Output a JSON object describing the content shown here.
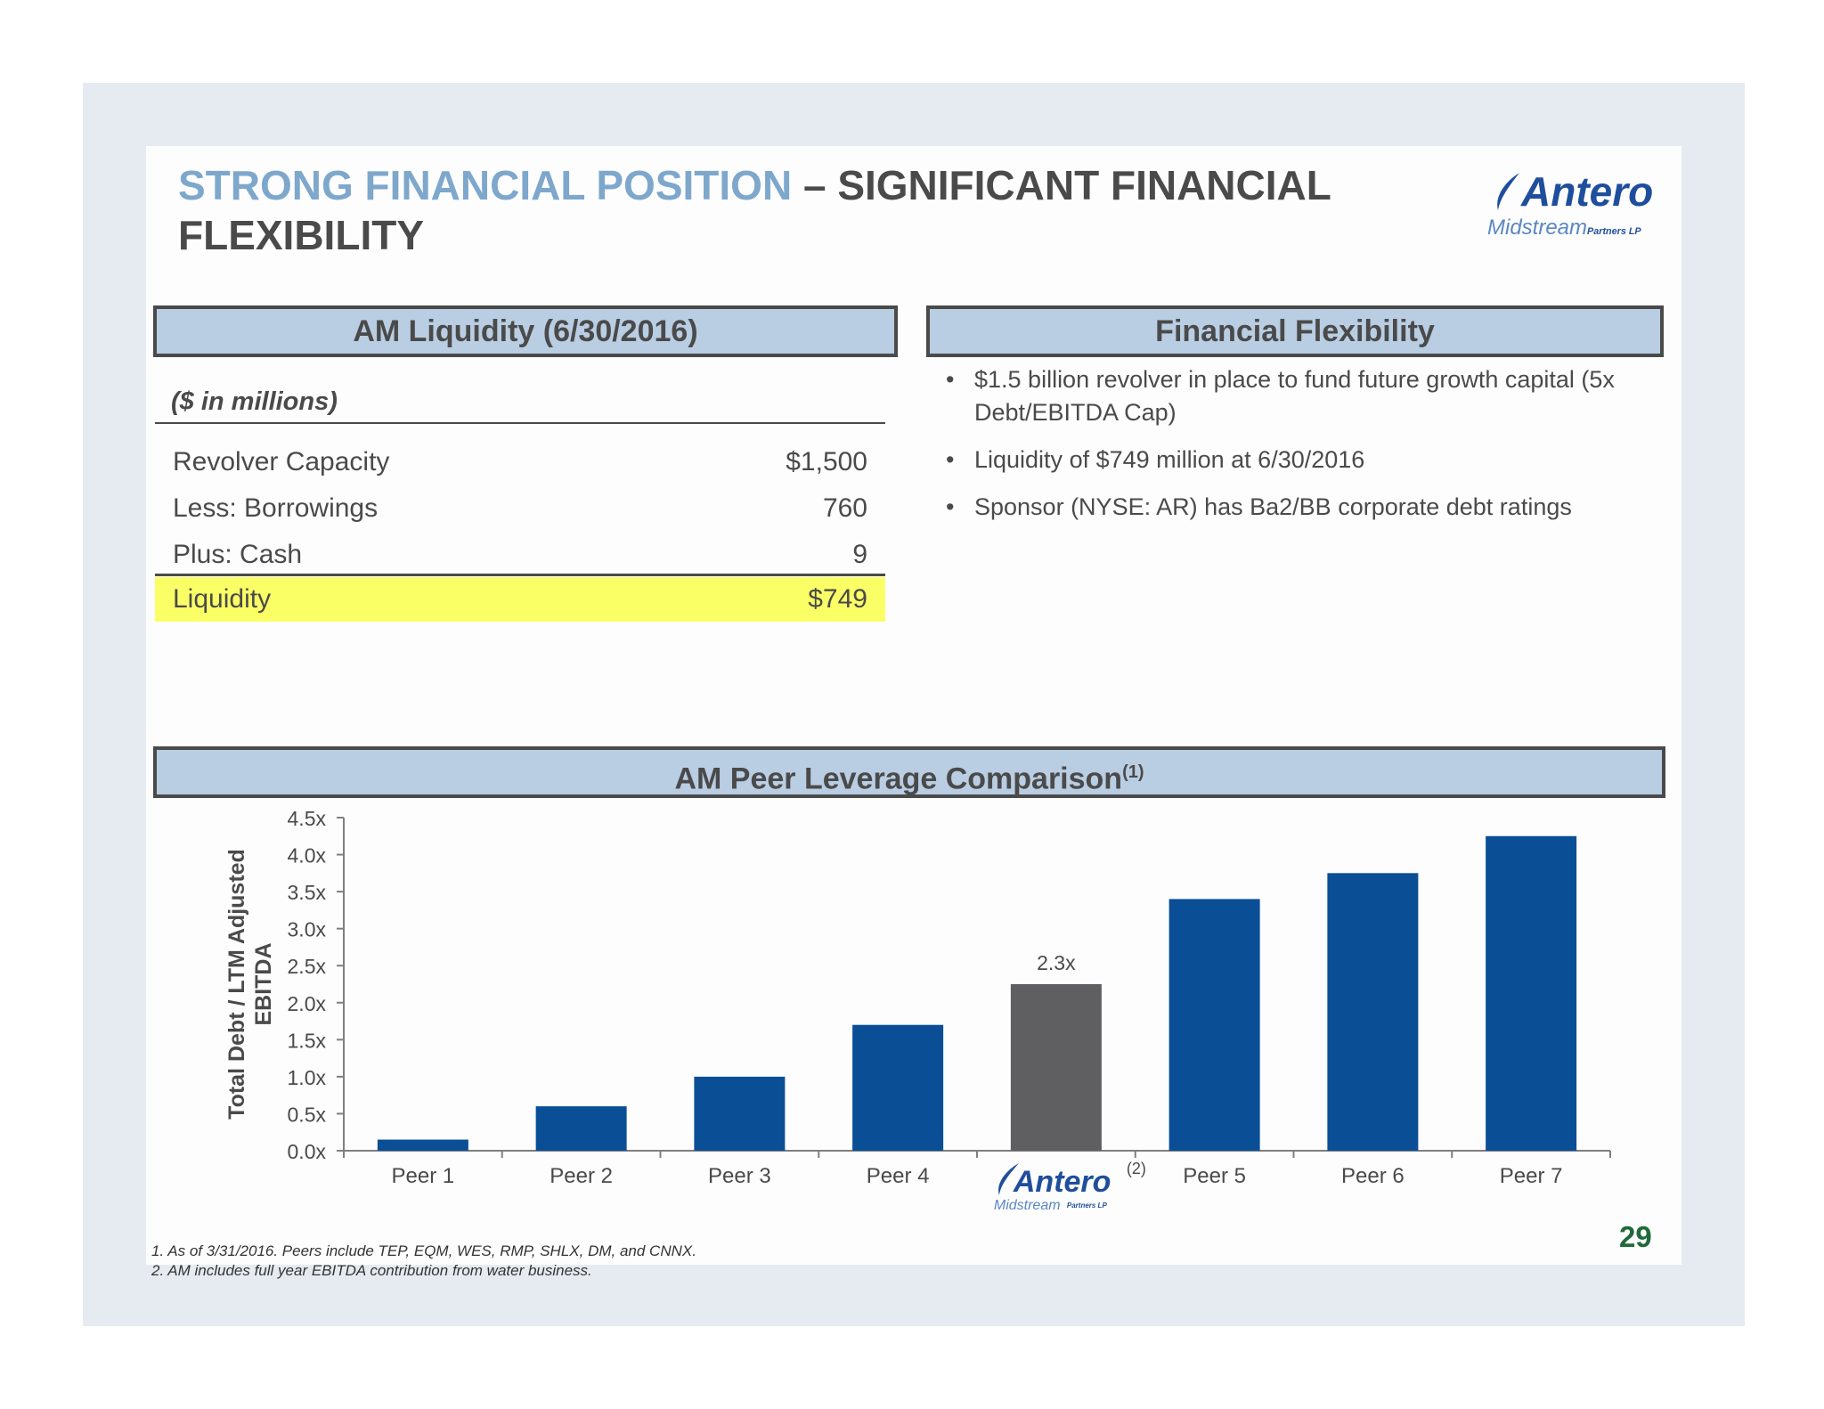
{
  "slide": {
    "title_highlight": "STRONG FINANCIAL POSITION",
    "title_rest": " – SIGNIFICANT FINANCIAL FLEXIBILITY",
    "page_number": "29"
  },
  "logo": {
    "name": "Antero",
    "sub": "Midstream",
    "suffix": "Partners LP"
  },
  "liquidity": {
    "header": "AM Liquidity (6/30/2016)",
    "units": "($ in millions)",
    "rows": [
      {
        "label": "Revolver Capacity",
        "value": "$1,500"
      },
      {
        "label": "Less: Borrowings",
        "value": "760"
      },
      {
        "label": "Plus: Cash",
        "value": "9"
      }
    ],
    "total": {
      "label": "Liquidity",
      "value": "$749"
    }
  },
  "flexibility": {
    "header": "Financial Flexibility",
    "bullets": [
      "$1.5 billion revolver in place to fund future growth capital (5x Debt/EBITDA Cap)",
      "Liquidity of $749 million at 6/30/2016",
      "Sponsor (NYSE: AR) has Ba2/BB corporate debt ratings"
    ],
    "bullet_glyph": "•"
  },
  "peer": {
    "header": "AM Peer Leverage Comparison",
    "header_sup": "(1)"
  },
  "chart_data": {
    "type": "bar",
    "title": "AM Peer Leverage Comparison(1)",
    "ylabel": "Total Debt / LTM Adjusted EBITDA",
    "xlabel": "",
    "ylim": [
      0,
      4.5
    ],
    "ytick_values": [
      0,
      0.5,
      1,
      1.5,
      2,
      2.5,
      3,
      3.5,
      4,
      4.5
    ],
    "ytick_labels": [
      "0.0x",
      "0.5x",
      "1.0x",
      "1.5x",
      "2.0x",
      "2.5x",
      "3.0x",
      "3.5x",
      "4.0x",
      "4.5x"
    ],
    "categories": [
      "Peer 1",
      "Peer 2",
      "Peer 3",
      "Peer 4",
      "Antero Midstream",
      "Peer 5",
      "Peer 6",
      "Peer 7"
    ],
    "values": [
      0.15,
      0.6,
      1.0,
      1.7,
      2.25,
      3.4,
      3.75,
      4.25
    ],
    "highlight_index": 4,
    "highlight_label": "2.3x",
    "highlight_note": "(2)",
    "colors": {
      "bar": "#0a4f96",
      "highlight": "#5f5e61",
      "axis": "#7f7f7f",
      "text": "#4a4a4a"
    }
  },
  "footnotes": [
    "1.  As of 3/31/2016.  Peers include TEP, EQM, WES, RMP, SHLX, DM, and CNNX.",
    "2.  AM includes full year EBITDA contribution from water business."
  ]
}
